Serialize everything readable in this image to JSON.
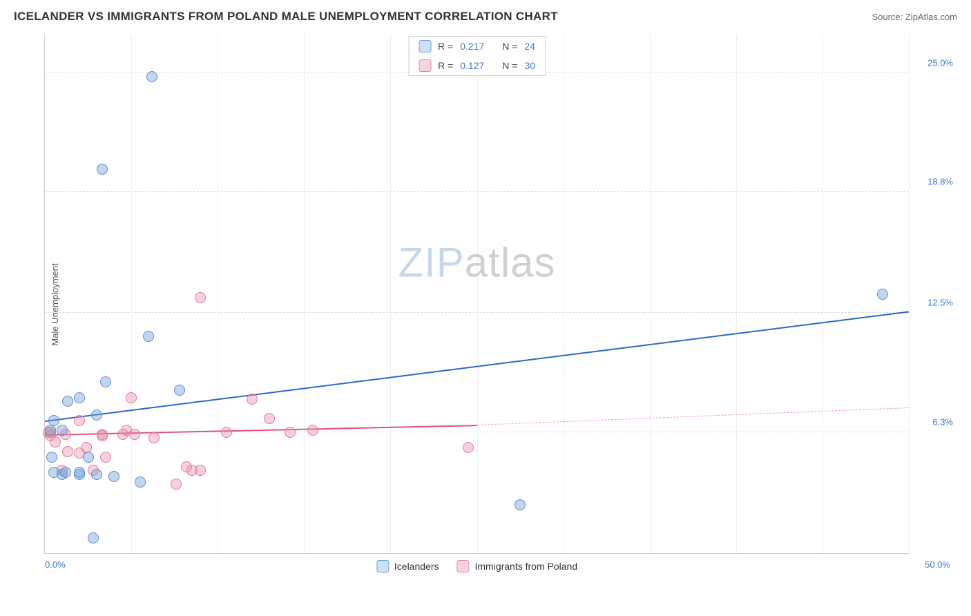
{
  "header": {
    "title": "ICELANDER VS IMMIGRANTS FROM POLAND MALE UNEMPLOYMENT CORRELATION CHART",
    "source": "Source: ZipAtlas.com"
  },
  "chart": {
    "type": "scatter",
    "y_axis_label": "Male Unemployment",
    "xlim": [
      0,
      50
    ],
    "ylim": [
      0,
      27
    ],
    "x_tick_labels": {
      "min": "0.0%",
      "max": "50.0%"
    },
    "y_ticks": [
      {
        "value": 6.3,
        "label": "6.3%"
      },
      {
        "value": 12.5,
        "label": "12.5%"
      },
      {
        "value": 18.8,
        "label": "18.8%"
      },
      {
        "value": 25.0,
        "label": "25.0%"
      }
    ],
    "x_tick_positions": [
      0,
      5,
      10,
      15,
      20,
      25,
      30,
      35,
      40,
      45,
      50
    ],
    "tick_color": "#3f7ac9",
    "background_color": "#ffffff",
    "grid_color_h": "#dddddd",
    "grid_color_v": "#eeeeee",
    "axis_color": "#cccccc",
    "watermark": {
      "zip": "ZIP",
      "atlas": "atlas"
    },
    "series": {
      "icelanders": {
        "label": "Icelanders",
        "color_fill": "rgba(120,165,220,0.45)",
        "color_stroke": "#5b8fce",
        "swatch_fill": "#cde0f4",
        "swatch_stroke": "#6a9fd8",
        "marker_radius": 8,
        "r_label": "R =",
        "r_value": "0.217",
        "n_label": "N =",
        "n_value": "24",
        "trend": {
          "x1": 0,
          "y1": 6.9,
          "x2": 50,
          "y2": 12.6,
          "color": "#2b67c7",
          "extrap_x": 50
        },
        "points": [
          {
            "x": 0.3,
            "y": 6.4
          },
          {
            "x": 0.4,
            "y": 5.0
          },
          {
            "x": 0.5,
            "y": 4.2
          },
          {
            "x": 0.5,
            "y": 6.9
          },
          {
            "x": 1.0,
            "y": 4.1
          },
          {
            "x": 1.0,
            "y": 6.4
          },
          {
            "x": 1.2,
            "y": 4.2
          },
          {
            "x": 1.3,
            "y": 7.9
          },
          {
            "x": 2.0,
            "y": 4.1
          },
          {
            "x": 2.0,
            "y": 4.2
          },
          {
            "x": 2.0,
            "y": 8.1
          },
          {
            "x": 2.5,
            "y": 5.0
          },
          {
            "x": 3.0,
            "y": 7.2
          },
          {
            "x": 3.0,
            "y": 4.1
          },
          {
            "x": 3.5,
            "y": 8.9
          },
          {
            "x": 4.0,
            "y": 4.0
          },
          {
            "x": 5.5,
            "y": 3.7
          },
          {
            "x": 6.0,
            "y": 11.3
          },
          {
            "x": 7.8,
            "y": 8.5
          },
          {
            "x": 3.3,
            "y": 20.0
          },
          {
            "x": 6.2,
            "y": 24.8
          },
          {
            "x": 2.8,
            "y": 0.8
          },
          {
            "x": 27.5,
            "y": 2.5
          },
          {
            "x": 48.5,
            "y": 13.5
          }
        ]
      },
      "poland": {
        "label": "Immigrants from Poland",
        "color_fill": "rgba(235,140,165,0.40)",
        "color_stroke": "#e17a99",
        "swatch_fill": "#f6d3dd",
        "swatch_stroke": "#e38aa5",
        "marker_radius": 8,
        "r_label": "R =",
        "r_value": "0.127",
        "n_label": "N =",
        "n_value": "30",
        "trend": {
          "x1": 0,
          "y1": 6.2,
          "x2": 25,
          "y2": 6.7,
          "color": "#e2537c",
          "extrap_x": 50,
          "extrap_y": 7.6
        },
        "points": [
          {
            "x": 0.2,
            "y": 6.3
          },
          {
            "x": 0.3,
            "y": 6.3
          },
          {
            "x": 0.3,
            "y": 6.1
          },
          {
            "x": 0.6,
            "y": 5.8
          },
          {
            "x": 1.0,
            "y": 4.3
          },
          {
            "x": 1.2,
            "y": 6.2
          },
          {
            "x": 1.3,
            "y": 5.3
          },
          {
            "x": 2.0,
            "y": 5.2
          },
          {
            "x": 2.0,
            "y": 6.9
          },
          {
            "x": 2.4,
            "y": 5.5
          },
          {
            "x": 2.8,
            "y": 4.3
          },
          {
            "x": 3.3,
            "y": 6.2
          },
          {
            "x": 3.3,
            "y": 6.1
          },
          {
            "x": 3.5,
            "y": 5.0
          },
          {
            "x": 4.5,
            "y": 6.2
          },
          {
            "x": 4.7,
            "y": 6.4
          },
          {
            "x": 5.0,
            "y": 8.1
          },
          {
            "x": 5.2,
            "y": 6.2
          },
          {
            "x": 6.3,
            "y": 6.0
          },
          {
            "x": 7.6,
            "y": 3.6
          },
          {
            "x": 8.2,
            "y": 4.5
          },
          {
            "x": 8.5,
            "y": 4.3
          },
          {
            "x": 9.0,
            "y": 4.3
          },
          {
            "x": 9.0,
            "y": 13.3
          },
          {
            "x": 10.5,
            "y": 6.3
          },
          {
            "x": 12.0,
            "y": 8.0
          },
          {
            "x": 13.0,
            "y": 7.0
          },
          {
            "x": 14.2,
            "y": 6.3
          },
          {
            "x": 15.5,
            "y": 6.4
          },
          {
            "x": 24.5,
            "y": 5.5
          }
        ]
      }
    }
  }
}
